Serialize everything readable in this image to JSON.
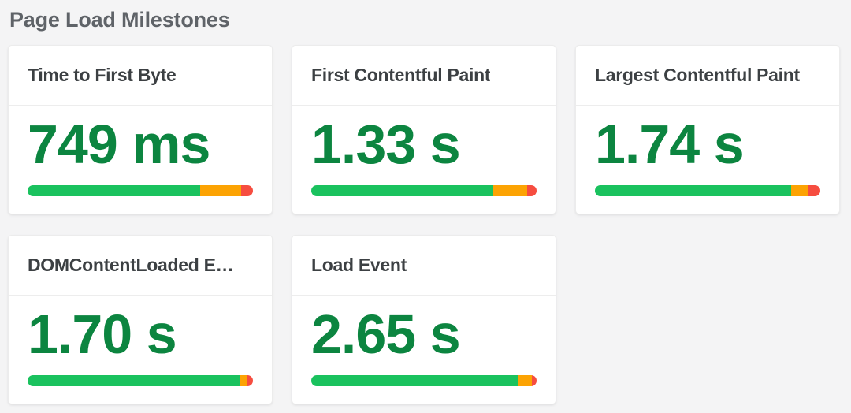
{
  "page": {
    "title": "Page Load Milestones"
  },
  "colors": {
    "value_text": "#0c8540",
    "bar_green": "#1ac25e",
    "bar_orange": "#fca303",
    "bar_red": "#f64d40"
  },
  "cards": [
    {
      "title": "Time to First Byte",
      "value": "749 ms",
      "segments": {
        "green": 76.5,
        "orange": 18.3,
        "red": 5.2
      }
    },
    {
      "title": "First Contentful Paint",
      "value": "1.33 s",
      "segments": {
        "green": 80.7,
        "orange": 15.2,
        "red": 4.1
      }
    },
    {
      "title": "Largest Contentful Paint",
      "value": "1.74 s",
      "segments": {
        "green": 87.1,
        "orange": 7.6,
        "red": 5.3
      }
    },
    {
      "title": "DOMContentLoaded E…",
      "value": "1.70 s",
      "segments": {
        "green": 94.5,
        "orange": 3.2,
        "red": 2.3
      }
    },
    {
      "title": "Load Event",
      "value": "2.65 s",
      "segments": {
        "green": 92.0,
        "orange": 6.0,
        "red": 2.0
      }
    }
  ],
  "chart_data": {
    "type": "bar",
    "title": "Page Load Milestones",
    "categories": [
      "Time to First Byte",
      "First Contentful Paint",
      "Largest Contentful Paint",
      "DOMContentLoaded E…",
      "Load Event"
    ],
    "values": [
      0.749,
      1.33,
      1.74,
      1.7,
      2.65
    ],
    "unit": "seconds",
    "display_values": [
      "749 ms",
      "1.33 s",
      "1.74 s",
      "1.70 s",
      "2.65 s"
    ],
    "series": [
      {
        "name": "green_zone_pct",
        "values": [
          76.5,
          80.7,
          87.1,
          94.5,
          92.0
        ]
      },
      {
        "name": "orange_zone_pct",
        "values": [
          18.3,
          15.2,
          7.6,
          3.2,
          6.0
        ]
      },
      {
        "name": "red_zone_pct",
        "values": [
          5.2,
          4.1,
          5.3,
          2.3,
          2.0
        ]
      }
    ],
    "legend_position": "none",
    "grid": false
  }
}
